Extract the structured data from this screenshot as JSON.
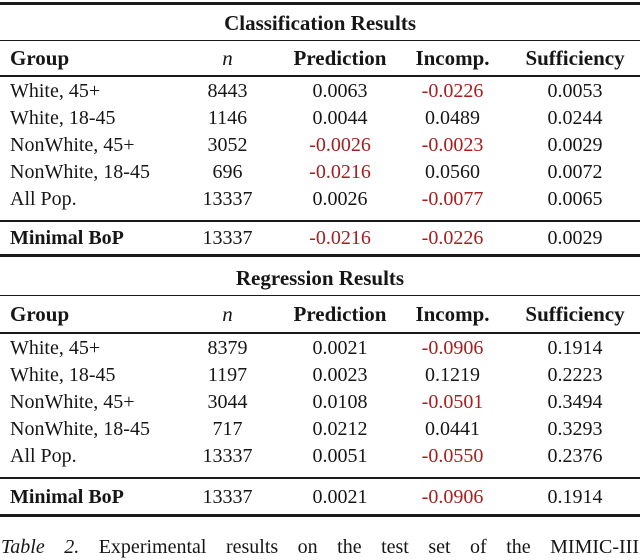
{
  "page": {
    "background": "#ffffff",
    "text_color": "#161616",
    "rule_color": "#1a1a1a",
    "negative_value_color": "#a61f1f"
  },
  "tables": [
    {
      "title": "Classification Results",
      "columns": [
        "Group",
        "n",
        "Prediction",
        "Incomp.",
        "Sufficiency"
      ],
      "rows": [
        [
          "White, 45+",
          "8443",
          "0.0063",
          "-0.0226",
          "0.0053"
        ],
        [
          "White, 18-45",
          "1146",
          "0.0044",
          "0.0489",
          "0.0244"
        ],
        [
          "NonWhite, 45+",
          "3052",
          "-0.0026",
          "-0.0023",
          "0.0029"
        ],
        [
          "NonWhite, 18-45",
          "696",
          "-0.0216",
          "0.0560",
          "0.0072"
        ],
        [
          "All Pop.",
          "13337",
          "0.0026",
          "-0.0077",
          "0.0065"
        ]
      ],
      "summary_row": [
        "Minimal BoP",
        "13337",
        "-0.0216",
        "-0.0226",
        "0.0029"
      ]
    },
    {
      "title": "Regression Results",
      "columns": [
        "Group",
        "n",
        "Prediction",
        "Incomp.",
        "Sufficiency"
      ],
      "rows": [
        [
          "White, 45+",
          "8379",
          "0.0021",
          "-0.0906",
          "0.1914"
        ],
        [
          "White, 18-45",
          "1197",
          "0.0023",
          "0.1219",
          "0.2223"
        ],
        [
          "NonWhite, 45+",
          "3044",
          "0.0108",
          "-0.0501",
          "0.3494"
        ],
        [
          "NonWhite, 18-45",
          "717",
          "0.0212",
          "0.0441",
          "0.3293"
        ],
        [
          "All Pop.",
          "13337",
          "0.0051",
          "-0.0550",
          "0.2376"
        ]
      ],
      "summary_row": [
        "Minimal BoP",
        "13337",
        "0.0021",
        "-0.0906",
        "0.1914"
      ]
    }
  ],
  "caption": {
    "label": "Table 2.",
    "text": "Experimental results on the test set of the MIMIC-III"
  }
}
